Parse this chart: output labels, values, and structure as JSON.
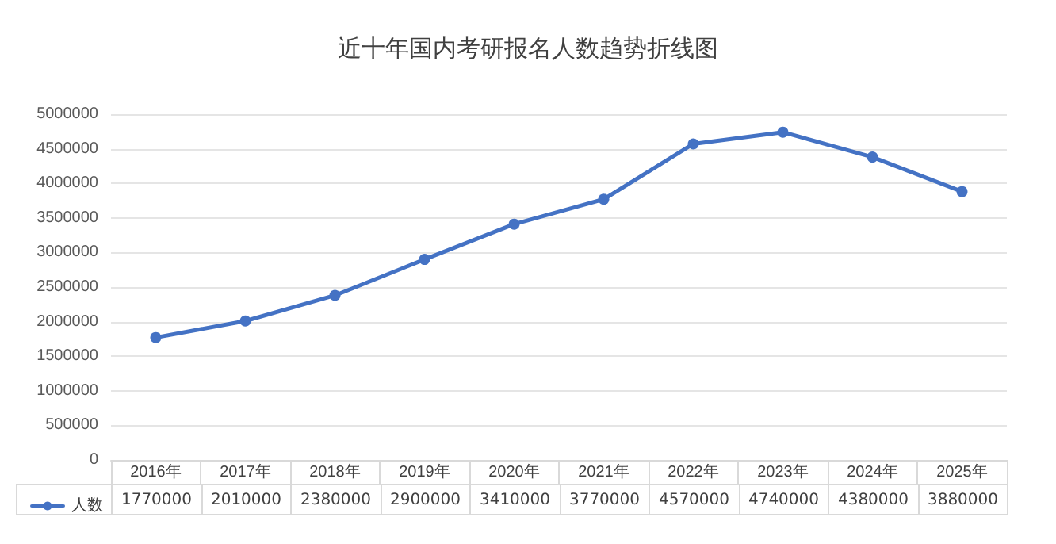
{
  "chart_data": {
    "type": "line",
    "title": "近十年国内考研报名人数趋势折线图",
    "categories": [
      "2016年",
      "2017年",
      "2018年",
      "2019年",
      "2020年",
      "2021年",
      "2022年",
      "2023年",
      "2024年",
      "2025年"
    ],
    "series": [
      {
        "name": "人数",
        "color": "#4472c4",
        "values": [
          1770000,
          2010000,
          2380000,
          2900000,
          3410000,
          3770000,
          4570000,
          4740000,
          4380000,
          3880000
        ]
      }
    ],
    "ylim": [
      0,
      5000000
    ],
    "yticks": [
      0,
      500000,
      1000000,
      1500000,
      2000000,
      2500000,
      3000000,
      3500000,
      4000000,
      4500000,
      5000000
    ],
    "grid": "y",
    "legend": "bottom left",
    "marker": "circle",
    "line_style": "solid",
    "data_labels": true
  }
}
